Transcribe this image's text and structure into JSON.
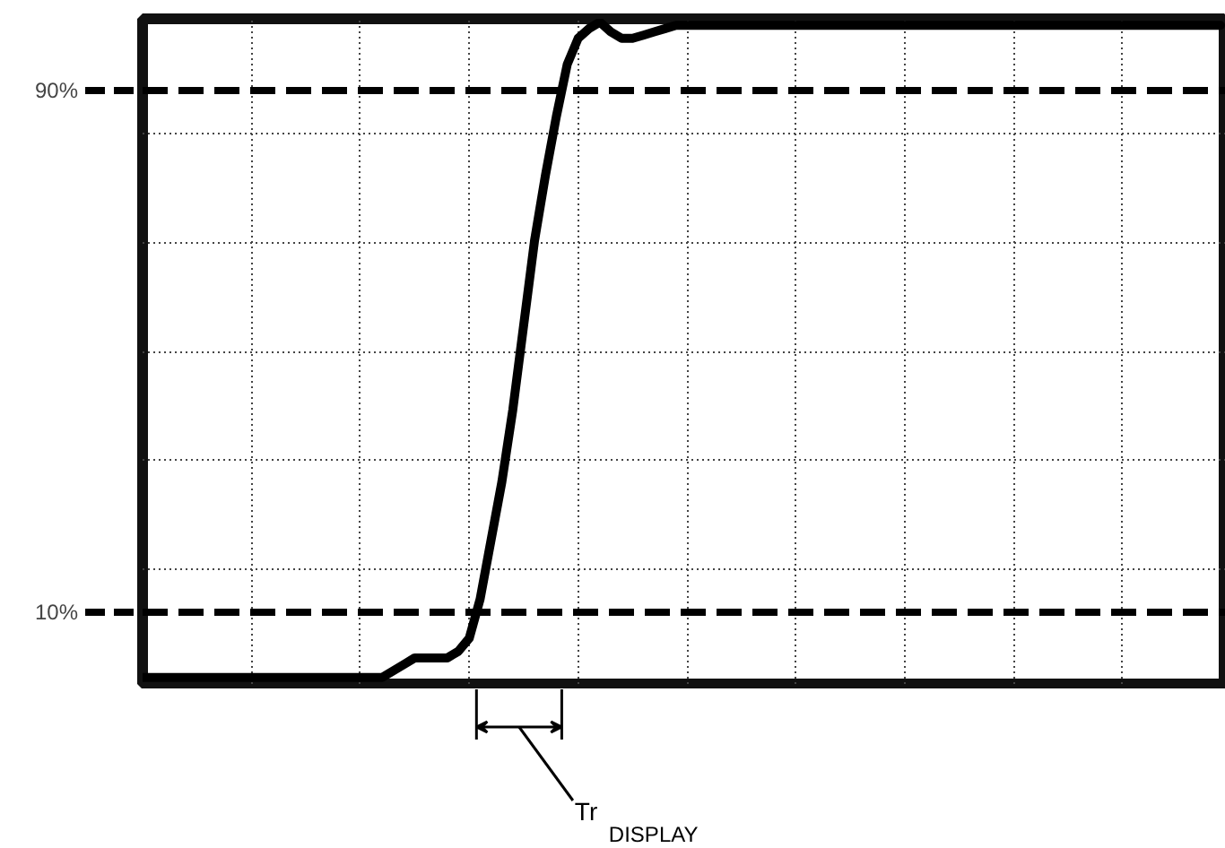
{
  "chart_data": {
    "type": "line",
    "categories": [
      null,
      null,
      null,
      null,
      null,
      null,
      null,
      null,
      null,
      null,
      null,
      null,
      null,
      null,
      null,
      null,
      null,
      null,
      null,
      null,
      null,
      null,
      null,
      null,
      null,
      null,
      null,
      null,
      null,
      null,
      null,
      null,
      null,
      null,
      null,
      null,
      null,
      null,
      null,
      null,
      null,
      null,
      null,
      null,
      null,
      null,
      null,
      null,
      null,
      null,
      null,
      null,
      null,
      null,
      null,
      null,
      null,
      null,
      null,
      null,
      null,
      null,
      null,
      null,
      null,
      null,
      null,
      null,
      null,
      null,
      null,
      null,
      null,
      null,
      null,
      null,
      null,
      null,
      null,
      null,
      null,
      null,
      null,
      null,
      null,
      null,
      null,
      null,
      null,
      null,
      null,
      null,
      null,
      null,
      null,
      null,
      null,
      null,
      null,
      null
    ],
    "values": [
      0,
      0,
      0,
      0,
      0,
      0,
      0,
      0,
      0,
      0,
      0,
      0,
      0,
      0,
      0,
      0,
      0,
      0,
      0,
      0,
      0,
      0,
      0,
      1,
      2,
      3,
      3,
      3,
      3,
      4,
      6,
      12,
      21,
      30,
      41,
      54,
      67,
      77,
      86,
      94,
      98,
      99.5,
      100.5,
      99,
      98,
      98,
      98.5,
      99,
      99.5,
      100,
      100,
      100,
      100,
      100,
      100,
      100,
      100,
      100,
      100,
      100,
      100,
      100,
      100,
      100,
      100,
      100,
      100,
      100,
      100,
      100,
      100,
      100,
      100,
      100,
      100,
      100,
      100,
      100,
      100,
      100,
      100,
      100,
      100,
      100,
      100,
      100,
      100,
      100,
      100,
      100,
      100,
      100,
      100,
      100,
      100,
      100,
      100,
      100,
      100,
      100
    ],
    "color": "#000000",
    "ylim": [
      -1,
      101
    ],
    "yticks": [
      {
        "value": 10,
        "label": "10%"
      },
      {
        "value": 16.67,
        "label": null
      },
      {
        "value": 33.33,
        "label": null
      },
      {
        "value": 50,
        "label": null
      },
      {
        "value": 66.67,
        "label": null
      },
      {
        "value": 83.33,
        "label": null
      },
      {
        "value": 90,
        "label": "90%"
      }
    ],
    "tick_labels": "y",
    "grid": true,
    "annotations": [
      "Tr$_{DISPLAY}$"
    ]
  }
}
